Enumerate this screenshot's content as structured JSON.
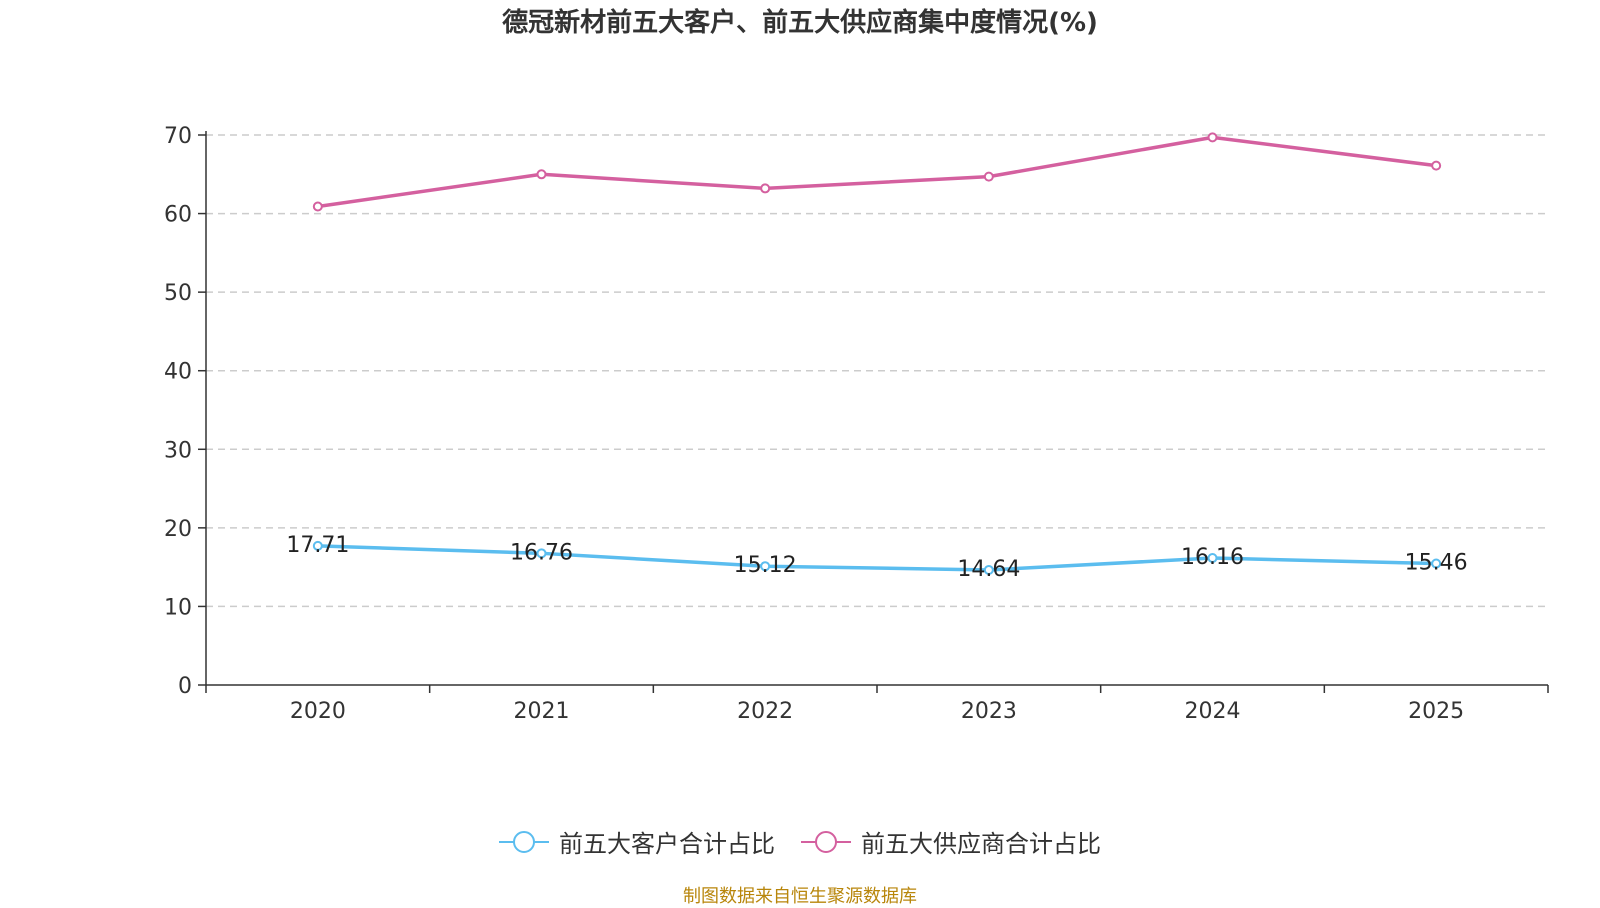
{
  "chart_data": {
    "type": "line",
    "title": "德冠新材前五大客户、前五大供应商集中度情况(%)",
    "categories": [
      "2020",
      "2021",
      "2022",
      "2023",
      "2024",
      "2025"
    ],
    "series": [
      {
        "name": "前五大客户合计占比",
        "color": "#5bbdef",
        "values": [
          17.71,
          16.76,
          15.12,
          14.64,
          16.16,
          15.46
        ],
        "labels_shown": true
      },
      {
        "name": "前五大供应商合计占比",
        "color": "#d4609f",
        "values": [
          60.9,
          65.0,
          63.2,
          64.7,
          69.7,
          66.1
        ],
        "labels_shown": false
      }
    ],
    "ylim": [
      0,
      70
    ],
    "yticks": [
      0,
      10,
      20,
      30,
      40,
      50,
      60,
      70
    ],
    "grid": true,
    "legend": "bottom-center",
    "xlabel": "",
    "ylabel": ""
  },
  "source_note": "制图数据来自恒生聚源数据库"
}
